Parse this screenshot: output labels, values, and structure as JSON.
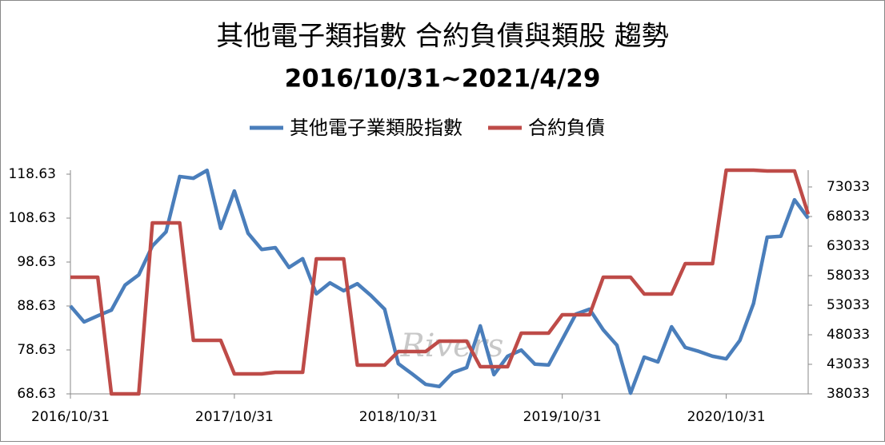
{
  "chart_data": {
    "type": "line",
    "title": "其他電子類指數 合約負債與類股 趨勢",
    "subtitle": "2016/10/31~2021/4/29",
    "watermark": "Rivers",
    "categories": [
      "2016/10/31",
      null,
      null,
      null,
      null,
      null,
      null,
      null,
      null,
      null,
      null,
      null,
      "2017/10/31",
      null,
      null,
      null,
      null,
      null,
      null,
      null,
      null,
      null,
      null,
      null,
      "2018/10/31",
      null,
      null,
      null,
      null,
      null,
      null,
      null,
      null,
      null,
      null,
      null,
      "2019/10/31",
      null,
      null,
      null,
      null,
      null,
      null,
      null,
      null,
      null,
      null,
      null,
      "2020/10/31",
      null,
      null,
      null,
      null,
      null,
      null
    ],
    "series": [
      {
        "name": "其他電子業類股指數",
        "color": "#4a7ebb",
        "axis": "y",
        "values": [
          88.63,
          85.0,
          86.4,
          87.7,
          93.4,
          95.7,
          102.3,
          105.5,
          118.1,
          117.7,
          119.5,
          106.3,
          114.8,
          105.2,
          101.5,
          101.9,
          97.4,
          99.4,
          91.4,
          93.9,
          92.1,
          93.7,
          91.0,
          87.9,
          75.5,
          73.2,
          70.8,
          70.3,
          73.5,
          74.6,
          84.1,
          73.0,
          77.2,
          78.6,
          75.4,
          75.2,
          81.0,
          86.8,
          87.9,
          83.2,
          79.7,
          68.8,
          77.0,
          75.9,
          83.9,
          79.2,
          78.3,
          77.2,
          76.6,
          80.8,
          89.2,
          104.3,
          104.5,
          112.8,
          108.6
        ]
      },
      {
        "name": "合約負債",
        "color": "#be4b48",
        "axis": "y2",
        "values": [
          57762,
          57762,
          57762,
          38033,
          38033,
          38033,
          66952,
          66952,
          66952,
          47087,
          47087,
          47087,
          41411,
          41411,
          41411,
          41682,
          41682,
          41682,
          60872,
          60872,
          60872,
          42898,
          42898,
          42898,
          45195,
          45195,
          45195,
          46952,
          46952,
          46952,
          42628,
          42628,
          42628,
          48303,
          48303,
          48303,
          51411,
          51411,
          51411,
          57762,
          57762,
          57762,
          54925,
          54925,
          54925,
          60060,
          60060,
          60060,
          75871,
          75871,
          75871,
          75736,
          75736,
          75736,
          68439
        ]
      }
    ],
    "ylim": [
      68.63,
      119.54
    ],
    "yticks": [
      68.63,
      78.63,
      88.63,
      98.63,
      108.63,
      118.63
    ],
    "y2lim": [
      38033,
      75871
    ],
    "y2ticks": [
      38033,
      43033,
      48033,
      53033,
      58033,
      63033,
      68033,
      73033
    ],
    "legend": "top"
  }
}
